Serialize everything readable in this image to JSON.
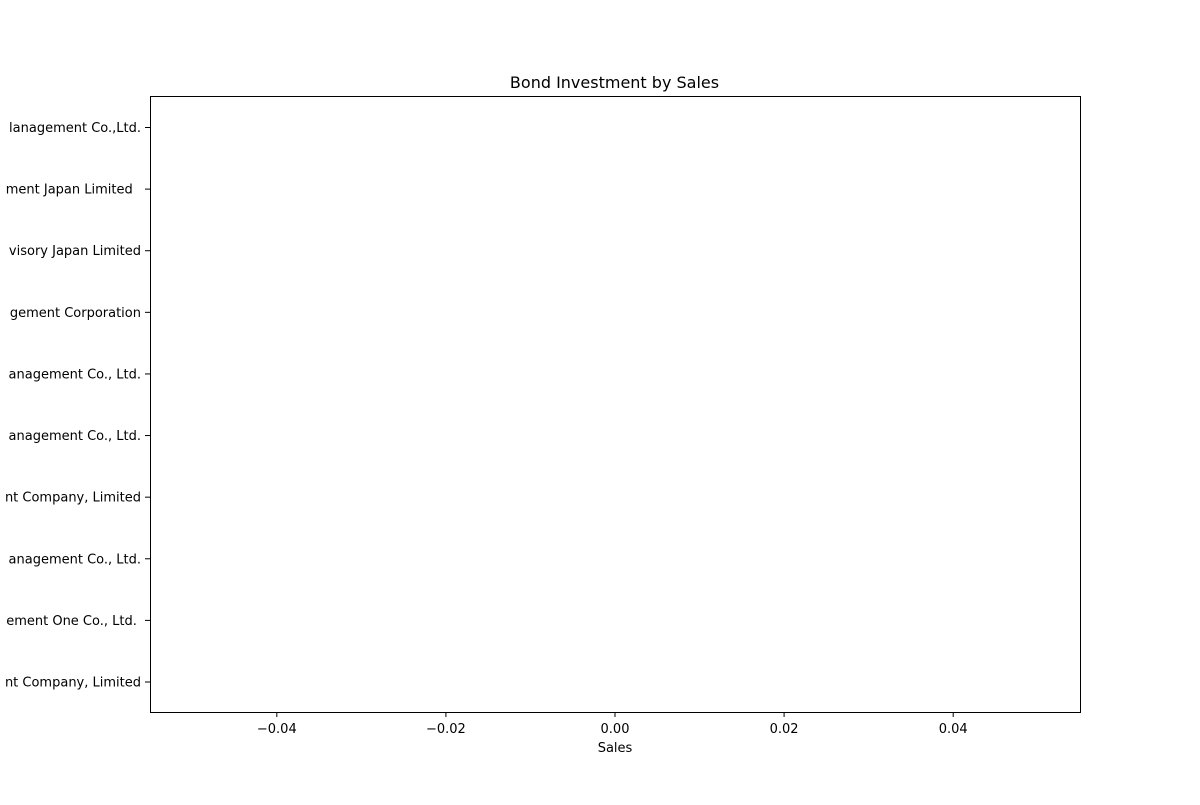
{
  "chart_data": {
    "type": "bar",
    "orientation": "horizontal",
    "title": "Bond Investment by Sales",
    "xlabel": "Sales",
    "ylabel": "",
    "xlim": [
      -0.055,
      0.055
    ],
    "x_ticks": [
      -0.04,
      -0.02,
      0.0,
      0.02,
      0.04
    ],
    "x_tick_labels": [
      "−0.04",
      "−0.02",
      "0.00",
      "0.02",
      "0.04"
    ],
    "categories_top_to_bottom": [
      "lanagement Co.,Ltd.",
      "ment Japan Limited  ",
      "visory Japan Limited",
      "gement Corporation",
      "anagement Co., Ltd.",
      "anagement Co., Ltd.",
      "nt Company, Limited",
      "anagement Co., Ltd.",
      "ement One Co., Ltd. ",
      "nt Company, Limited"
    ],
    "values": [
      0,
      0,
      0,
      0,
      0,
      0,
      0,
      0,
      0,
      0
    ],
    "grid": false,
    "legend": "none"
  }
}
